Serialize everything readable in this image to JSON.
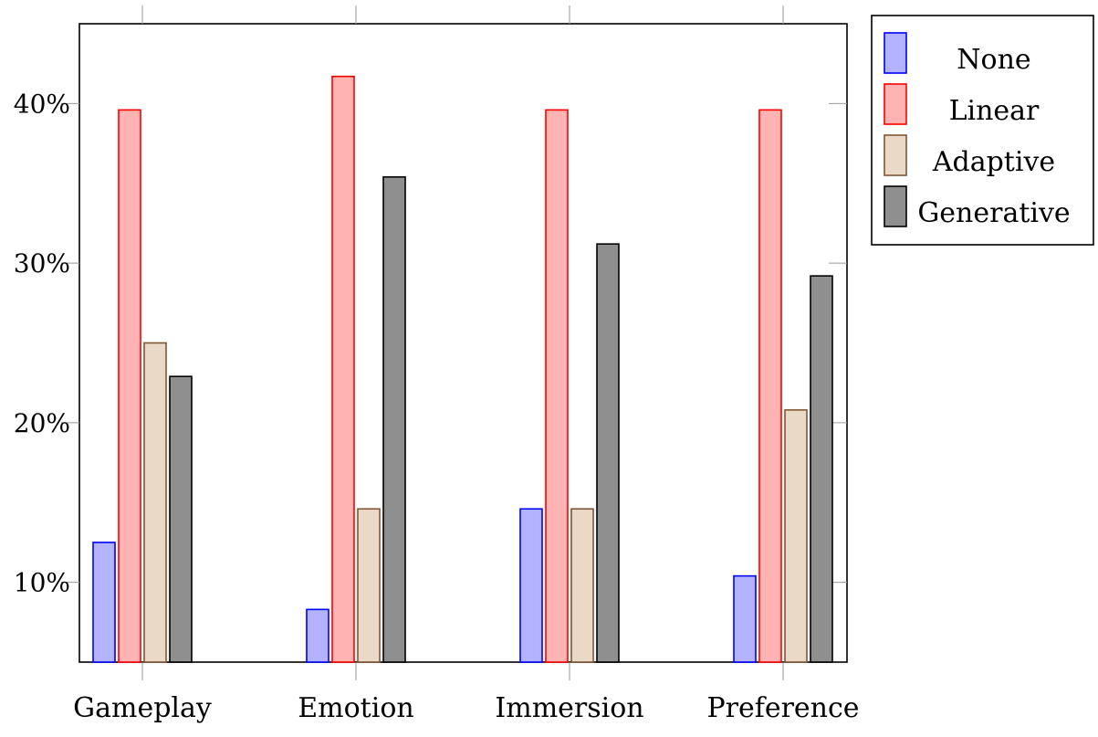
{
  "chart_data": {
    "type": "bar",
    "categories": [
      "Gameplay",
      "Emotion",
      "Immersion",
      "Preference"
    ],
    "series": [
      {
        "name": "None",
        "values": [
          12.5,
          8.3,
          14.6,
          10.4
        ],
        "fill": "#b3b3ff",
        "stroke": "#0000ff"
      },
      {
        "name": "Linear",
        "values": [
          39.6,
          41.7,
          39.6,
          39.6
        ],
        "fill": "#ffb3b3",
        "stroke": "#ff0000"
      },
      {
        "name": "Adaptive",
        "values": [
          25.0,
          14.6,
          14.6,
          20.8
        ],
        "fill": "#ead9c6",
        "stroke": "#805533"
      },
      {
        "name": "Generative",
        "values": [
          22.9,
          35.4,
          31.2,
          29.2
        ],
        "fill": "#8f8f8f",
        "stroke": "#000000"
      }
    ],
    "yticks": [
      10,
      20,
      30,
      40
    ],
    "ytick_labels": [
      "10%",
      "20%",
      "30%",
      "40%"
    ],
    "ylim": [
      5,
      45
    ],
    "legend_position": "outside-top-right",
    "grid": false
  }
}
